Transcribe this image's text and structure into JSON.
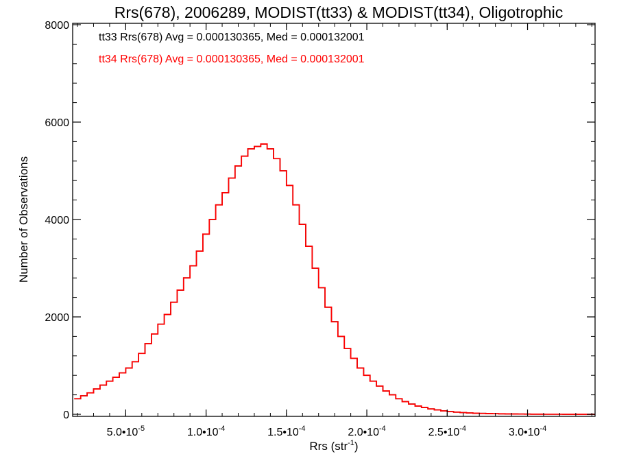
{
  "chart_data": {
    "type": "histogram",
    "title": "Rrs(678), 2006289, MODIST(tt33) & MODIST(tt34), Oligotrophic",
    "xlabel": "Rrs (str",
    "xlabel_sup": "-1",
    "xlabel_end": ")",
    "ylabel": "Number of Observations",
    "xlim": [
      1.7e-05,
      0.000342
    ],
    "ylim": [
      0,
      8000
    ],
    "grid": false,
    "x_ticks": [
      {
        "value": 5e-05,
        "mant": "5.0•10",
        "exp": "-5"
      },
      {
        "value": 0.0001,
        "mant": "1.0•10",
        "exp": "-4"
      },
      {
        "value": 0.00015,
        "mant": "1.5•10",
        "exp": "-4"
      },
      {
        "value": 0.0002,
        "mant": "2.0•10",
        "exp": "-4"
      },
      {
        "value": 0.00025,
        "mant": "2.5•10",
        "exp": "-4"
      },
      {
        "value": 0.0003,
        "mant": "3.0•10",
        "exp": "-4"
      }
    ],
    "y_ticks": [
      0,
      2000,
      4000,
      6000,
      8000
    ],
    "annotations": [
      {
        "text": "tt33 Rrs(678) Avg = 0.000130365, Med = 0.000132001",
        "color": "#000000"
      },
      {
        "text": "tt34 Rrs(678) Avg = 0.000130365, Med = 0.000132001",
        "color": "#ff0000"
      }
    ],
    "series": [
      {
        "label": "tt33",
        "color": "#000000",
        "x": [
          1.8e-05,
          2.2e-05,
          2.6e-05,
          3e-05,
          3.4e-05,
          3.8e-05,
          4.2e-05,
          4.6e-05,
          5e-05,
          5.4e-05,
          5.8e-05,
          6.2e-05,
          6.6e-05,
          7e-05,
          7.4e-05,
          7.8e-05,
          8.2e-05,
          8.6e-05,
          9e-05,
          9.4e-05,
          9.8e-05,
          0.000102,
          0.000106,
          0.00011,
          0.000114,
          0.000118,
          0.000122,
          0.000126,
          0.00013,
          0.000134,
          0.000138,
          0.000142,
          0.000146,
          0.00015,
          0.000154,
          0.000158,
          0.000162,
          0.000166,
          0.00017,
          0.000174,
          0.000178,
          0.000182,
          0.000186,
          0.00019,
          0.000194,
          0.000198,
          0.000202,
          0.000206,
          0.00021,
          0.000214,
          0.000218,
          0.000222,
          0.000226,
          0.00023,
          0.000234,
          0.000238,
          0.000242,
          0.000246,
          0.00025,
          0.000254,
          0.000258,
          0.000262,
          0.000266,
          0.00027,
          0.000274,
          0.000278,
          0.000282,
          0.000286,
          0.00029,
          0.000294,
          0.000298,
          0.000302,
          0.000306,
          0.00031,
          0.000314,
          0.000318,
          0.000322,
          0.000326,
          0.00033,
          0.000334,
          0.000338,
          0.000342
        ],
        "values": [
          320,
          380,
          440,
          520,
          600,
          680,
          760,
          850,
          950,
          1080,
          1250,
          1450,
          1650,
          1850,
          2050,
          2300,
          2550,
          2800,
          3050,
          3350,
          3700,
          4000,
          4300,
          4550,
          4850,
          5100,
          5300,
          5450,
          5500,
          5550,
          5450,
          5250,
          5000,
          4700,
          4300,
          3900,
          3450,
          3000,
          2600,
          2200,
          1900,
          1600,
          1350,
          1150,
          950,
          800,
          680,
          580,
          480,
          400,
          320,
          260,
          210,
          170,
          140,
          110,
          90,
          70,
          55,
          45,
          35,
          28,
          22,
          18,
          15,
          12,
          10,
          8,
          6,
          5,
          4,
          3,
          3,
          2,
          2,
          2,
          1,
          1,
          1,
          1,
          1,
          1
        ]
      },
      {
        "label": "tt34",
        "color": "#ff0000",
        "x": [
          1.8e-05,
          2.2e-05,
          2.6e-05,
          3e-05,
          3.4e-05,
          3.8e-05,
          4.2e-05,
          4.6e-05,
          5e-05,
          5.4e-05,
          5.8e-05,
          6.2e-05,
          6.6e-05,
          7e-05,
          7.4e-05,
          7.8e-05,
          8.2e-05,
          8.6e-05,
          9e-05,
          9.4e-05,
          9.8e-05,
          0.000102,
          0.000106,
          0.00011,
          0.000114,
          0.000118,
          0.000122,
          0.000126,
          0.00013,
          0.000134,
          0.000138,
          0.000142,
          0.000146,
          0.00015,
          0.000154,
          0.000158,
          0.000162,
          0.000166,
          0.00017,
          0.000174,
          0.000178,
          0.000182,
          0.000186,
          0.00019,
          0.000194,
          0.000198,
          0.000202,
          0.000206,
          0.00021,
          0.000214,
          0.000218,
          0.000222,
          0.000226,
          0.00023,
          0.000234,
          0.000238,
          0.000242,
          0.000246,
          0.00025,
          0.000254,
          0.000258,
          0.000262,
          0.000266,
          0.00027,
          0.000274,
          0.000278,
          0.000282,
          0.000286,
          0.00029,
          0.000294,
          0.000298,
          0.000302,
          0.000306,
          0.00031,
          0.000314,
          0.000318,
          0.000322,
          0.000326,
          0.00033,
          0.000334,
          0.000338,
          0.000342
        ],
        "values": [
          320,
          380,
          440,
          520,
          600,
          680,
          760,
          850,
          950,
          1080,
          1250,
          1450,
          1650,
          1850,
          2050,
          2300,
          2550,
          2800,
          3050,
          3350,
          3700,
          4000,
          4300,
          4550,
          4850,
          5100,
          5300,
          5450,
          5500,
          5550,
          5450,
          5250,
          5000,
          4700,
          4300,
          3900,
          3450,
          3000,
          2600,
          2200,
          1900,
          1600,
          1350,
          1150,
          950,
          800,
          680,
          580,
          480,
          400,
          320,
          260,
          210,
          170,
          140,
          110,
          90,
          70,
          55,
          45,
          35,
          28,
          22,
          18,
          15,
          12,
          10,
          8,
          6,
          5,
          4,
          3,
          3,
          2,
          2,
          2,
          1,
          1,
          1,
          1,
          1,
          1
        ]
      }
    ]
  }
}
